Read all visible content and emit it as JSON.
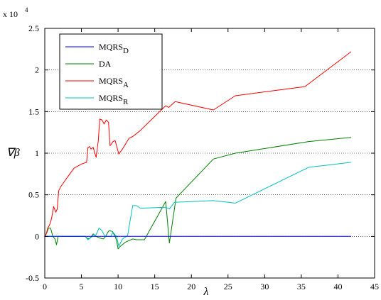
{
  "chart_data": {
    "type": "line",
    "title": "",
    "xlabel": "λ",
    "ylabel": "∇β",
    "y_multiplier_label": "x 10",
    "y_multiplier_exponent": "4",
    "xlim": [
      0,
      45
    ],
    "ylim": [
      -5000,
      25000
    ],
    "xticks": [
      0,
      5,
      10,
      15,
      20,
      25,
      30,
      35,
      40,
      45
    ],
    "yticks": [
      -5000,
      0,
      5000,
      10000,
      15000,
      20000,
      25000
    ],
    "ytick_labels": [
      "-0.5",
      "0",
      "0.5",
      "1",
      "1.5",
      "2",
      "2.5"
    ],
    "grid": "horizontal dotted",
    "legend_position": "top-left",
    "series": [
      {
        "name": "MQRS_D",
        "name_main": "MQRS",
        "name_sub": "D",
        "color": "#0000ff",
        "x": [
          0,
          5,
          10,
          15,
          20,
          25,
          30,
          35,
          41.8
        ],
        "y": [
          0,
          0,
          0,
          0,
          0,
          0,
          0,
          0,
          0
        ]
      },
      {
        "name": "DA",
        "name_main": "DA",
        "name_sub": "",
        "color": "#008000",
        "x": [
          0,
          0.3,
          0.5,
          0.8,
          1.1,
          1.4,
          1.6,
          1.8,
          2,
          2.5,
          3,
          4,
          5,
          5.5,
          5.9,
          6.2,
          6.6,
          7,
          7.5,
          8,
          8.3,
          8.6,
          8.8,
          9.2,
          9.6,
          9.8,
          10,
          10.3,
          11,
          12,
          12.5,
          13,
          13.6,
          16.5,
          17,
          17.9,
          23,
          26,
          36,
          41.8
        ],
        "y": [
          0,
          500,
          1000,
          1000,
          0,
          -300,
          -1000,
          0,
          0,
          0,
          0,
          0,
          0,
          0,
          -300,
          -200,
          300,
          0,
          -200,
          -300,
          0,
          500,
          700,
          600,
          0,
          -500,
          -1500,
          -1200,
          -700,
          -300,
          -400,
          -400,
          -400,
          4200,
          -800,
          4600,
          9300,
          10000,
          11400,
          11900
        ]
      },
      {
        "name": "MQRS_A",
        "name_main": "MQRS",
        "name_sub": "A",
        "color": "#ff0000",
        "x": [
          0,
          0.2,
          0.4,
          0.6,
          0.8,
          1,
          1.2,
          1.5,
          1.7,
          1.9,
          2.2,
          3,
          4,
          5,
          5.7,
          5.9,
          6.1,
          6.3,
          6.6,
          7,
          7.3,
          7.5,
          7.8,
          8.1,
          8.4,
          8.7,
          8.9,
          9.1,
          9.3,
          9.6,
          10.1,
          10.6,
          11.5,
          12,
          13,
          16.5,
          16.9,
          17.8,
          23,
          26,
          35.5,
          41.8
        ],
        "y": [
          0,
          300,
          1000,
          1300,
          1700,
          2500,
          3600,
          2900,
          3300,
          5500,
          6000,
          7000,
          8200,
          8700,
          8900,
          10700,
          10800,
          10500,
          10700,
          9500,
          11500,
          14100,
          14000,
          13500,
          14000,
          13700,
          10900,
          11100,
          11400,
          11500,
          9900,
          10500,
          11800,
          12000,
          12700,
          15700,
          15500,
          16200,
          15200,
          16900,
          18000,
          22200
        ]
      },
      {
        "name": "MQRS_R",
        "name_main": "MQRS",
        "name_sub": "R",
        "color": "#00c0c0",
        "x": [
          0,
          1,
          2,
          3,
          4,
          5,
          5.5,
          5.9,
          6.2,
          6.6,
          7,
          7.4,
          7.8,
          8.2,
          8.6,
          9,
          9.3,
          9.8,
          10.1,
          10.6,
          11.3,
          12,
          12.5,
          13,
          13.6,
          16.5,
          17,
          17.7,
          23,
          26,
          36,
          41.8
        ],
        "y": [
          0,
          0,
          0,
          0,
          0,
          0,
          0,
          -400,
          -200,
          100,
          200,
          1000,
          700,
          0,
          0,
          0,
          500,
          0,
          -1200,
          -300,
          100,
          3700,
          3700,
          3400,
          3400,
          3500,
          3300,
          4100,
          4300,
          4000,
          8300,
          8900
        ]
      }
    ]
  }
}
